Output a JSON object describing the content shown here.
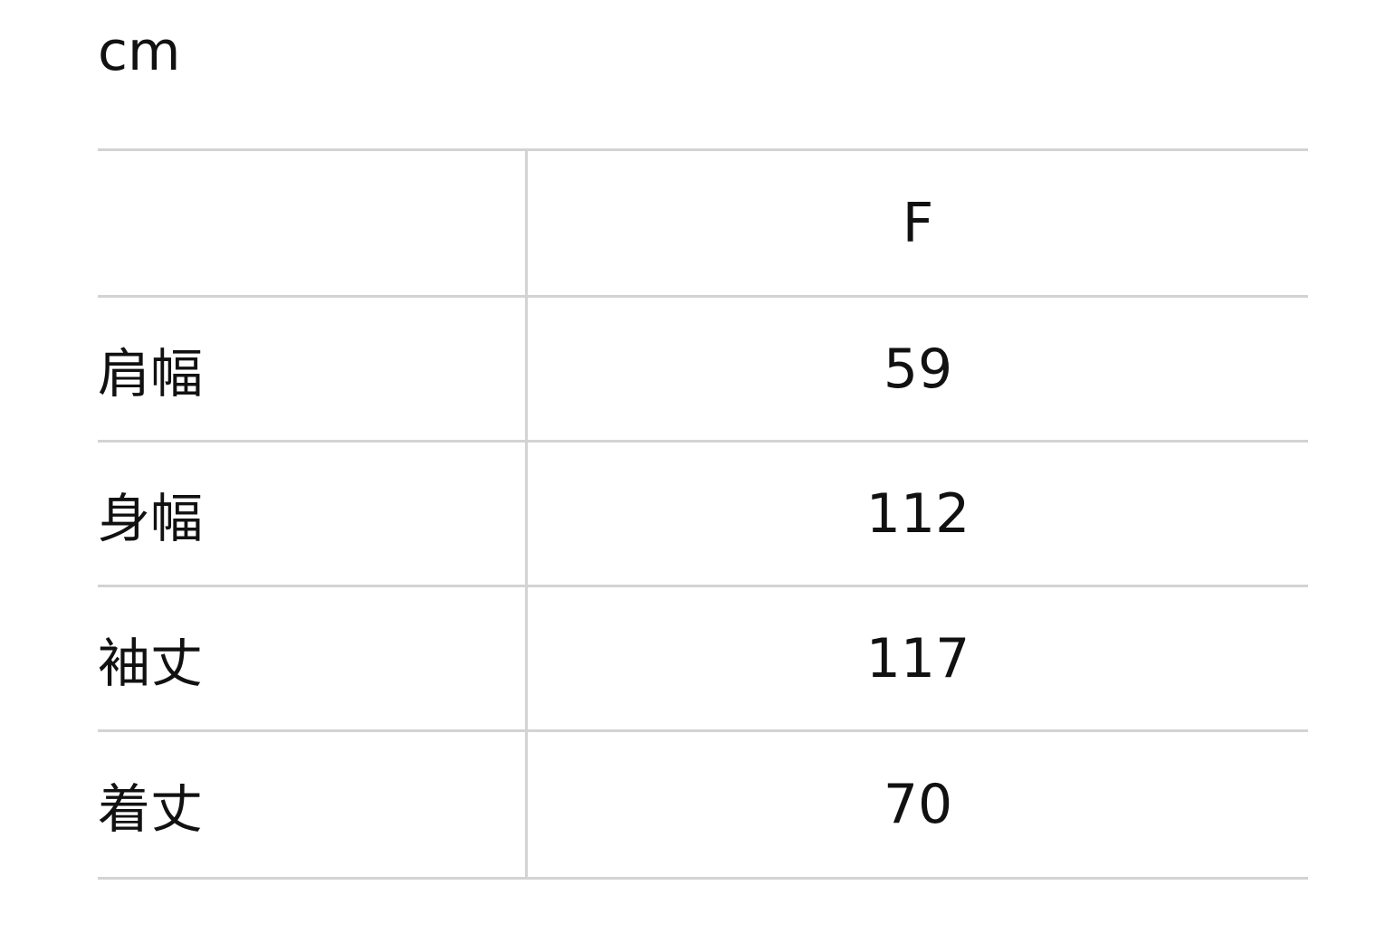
{
  "unit": "cm",
  "table": {
    "header": {
      "label": "",
      "value": "F"
    },
    "rows": [
      {
        "label": "肩幅",
        "value": "59"
      },
      {
        "label": "身幅",
        "value": "112"
      },
      {
        "label": "袖丈",
        "value": "117"
      },
      {
        "label": "着丈",
        "value": "70"
      }
    ]
  },
  "colors": {
    "border": "#d3d3d3",
    "text": "#111111"
  }
}
